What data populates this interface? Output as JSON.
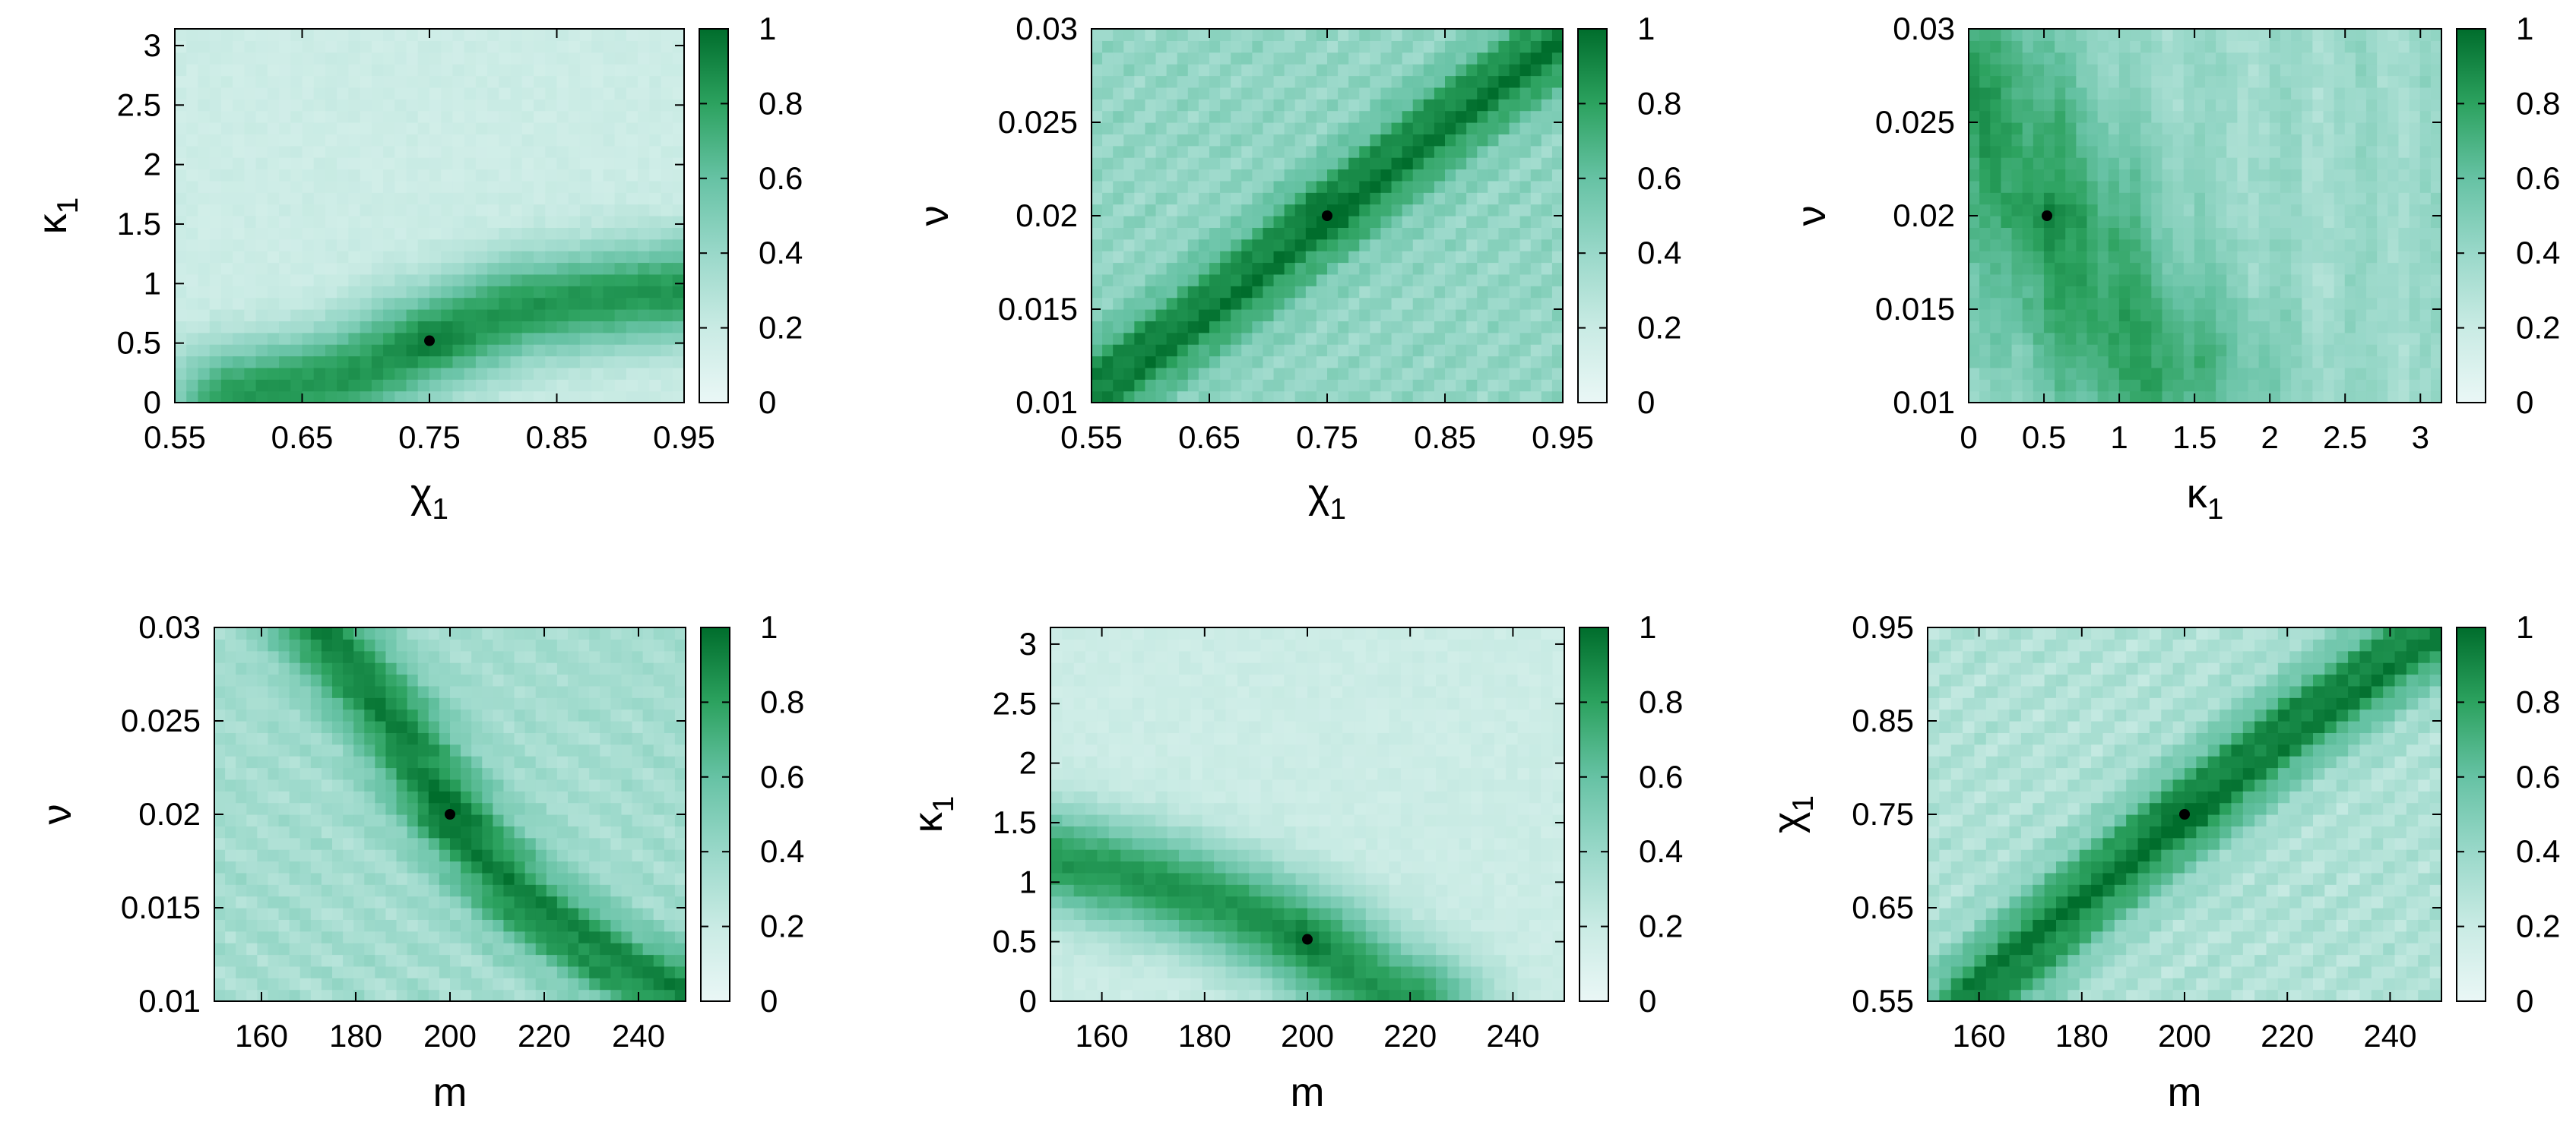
{
  "colorbar": {
    "ticks": [
      "0",
      "0.2",
      "0.4",
      "0.6",
      "0.8",
      "1"
    ],
    "range": [
      0,
      1
    ],
    "low_color": "#eaf7f6",
    "high_color": "#006837"
  },
  "chart_data": [
    {
      "type": "heatmap",
      "xlabel": "χ1",
      "ylabel": "κ1",
      "xlim": [
        0.55,
        0.95
      ],
      "ylim": [
        0,
        3.14
      ],
      "xticks": [
        "0.55",
        "0.65",
        "0.75",
        "0.85",
        "0.95"
      ],
      "yticks": [
        "0",
        "0.5",
        "1",
        "1.5",
        "2",
        "2.5",
        "3"
      ],
      "marker": {
        "x": 0.75,
        "y": 0.52
      },
      "ridge": [
        [
          0.6,
          0.05
        ],
        [
          0.68,
          0.2
        ],
        [
          0.75,
          0.52
        ],
        [
          0.82,
          0.8
        ],
        [
          0.95,
          0.95
        ]
      ],
      "ridge_width": 0.03,
      "base_level": 0.18,
      "peak_level": 0.85,
      "stripes": "none"
    },
    {
      "type": "heatmap",
      "xlabel": "χ1",
      "ylabel": "ν",
      "xlim": [
        0.55,
        0.95
      ],
      "ylim": [
        0.01,
        0.03
      ],
      "xticks": [
        "0.55",
        "0.65",
        "0.75",
        "0.85",
        "0.95"
      ],
      "yticks": [
        "0.01",
        "0.015",
        "0.02",
        "0.025",
        "0.03"
      ],
      "marker": {
        "x": 0.75,
        "y": 0.02
      },
      "ridge": [
        [
          0.55,
          0.0105
        ],
        [
          0.65,
          0.015
        ],
        [
          0.75,
          0.02
        ],
        [
          0.85,
          0.025
        ],
        [
          0.95,
          0.0295
        ]
      ],
      "ridge_width": 0.022,
      "base_level": 0.42,
      "peak_level": 0.95,
      "stripes": "diagonal"
    },
    {
      "type": "heatmap",
      "xlabel": "κ1",
      "ylabel": "ν",
      "xlim": [
        0,
        3.14
      ],
      "ylim": [
        0.01,
        0.03
      ],
      "xticks": [
        "0",
        "0.5",
        "1",
        "1.5",
        "2",
        "2.5",
        "3"
      ],
      "yticks": [
        "0.01",
        "0.015",
        "0.02",
        "0.025",
        "0.03"
      ],
      "marker": {
        "x": 0.52,
        "y": 0.02
      },
      "ridge": [
        [
          0,
          0.027
        ],
        [
          0.3,
          0.023
        ],
        [
          0.52,
          0.02
        ],
        [
          0.8,
          0.016
        ],
        [
          1.2,
          0.012
        ]
      ],
      "ridge_width": 0.05,
      "base_level": 0.38,
      "peak_level": 0.8,
      "stripes": "vertical-noise"
    },
    {
      "type": "heatmap",
      "xlabel": "m",
      "ylabel": "ν",
      "xlim": [
        150,
        250
      ],
      "ylim": [
        0.01,
        0.03
      ],
      "xticks": [
        "160",
        "180",
        "200",
        "220",
        "240"
      ],
      "yticks": [
        "0.01",
        "0.015",
        "0.02",
        "0.025",
        "0.03"
      ],
      "marker": {
        "x": 200,
        "y": 0.02
      },
      "ridge": [
        [
          172,
          0.03
        ],
        [
          188,
          0.025
        ],
        [
          200,
          0.02
        ],
        [
          215,
          0.0155
        ],
        [
          235,
          0.012
        ],
        [
          250,
          0.0105
        ]
      ],
      "ridge_width": 0.022,
      "base_level": 0.35,
      "peak_level": 0.92,
      "stripes": "arcs"
    },
    {
      "type": "heatmap",
      "xlabel": "m",
      "ylabel": "κ1",
      "xlim": [
        150,
        250
      ],
      "ylim": [
        0,
        3.14
      ],
      "xticks": [
        "160",
        "180",
        "200",
        "220",
        "240"
      ],
      "yticks": [
        "0",
        "0.5",
        "1",
        "1.5",
        "2",
        "2.5",
        "3"
      ],
      "marker": {
        "x": 200,
        "y": 0.52
      },
      "ridge": [
        [
          150,
          1.2
        ],
        [
          170,
          1.0
        ],
        [
          185,
          0.8
        ],
        [
          200,
          0.52
        ],
        [
          212,
          0.15
        ],
        [
          220,
          0.0
        ]
      ],
      "ridge_width": 0.03,
      "base_level": 0.18,
      "peak_level": 0.85,
      "stripes": "none"
    },
    {
      "type": "heatmap",
      "xlabel": "m",
      "ylabel": "χ1",
      "xlim": [
        150,
        250
      ],
      "ylim": [
        0.55,
        0.95
      ],
      "xticks": [
        "160",
        "180",
        "200",
        "220",
        "240"
      ],
      "yticks": [
        "0.55",
        "0.65",
        "0.75",
        "0.85",
        "0.95"
      ],
      "marker": {
        "x": 200,
        "y": 0.75
      },
      "ridge": [
        [
          160,
          0.56
        ],
        [
          180,
          0.66
        ],
        [
          200,
          0.75
        ],
        [
          220,
          0.84
        ],
        [
          248,
          0.945
        ]
      ],
      "ridge_width": 0.022,
      "base_level": 0.3,
      "peak_level": 0.95,
      "stripes": "diagonal"
    }
  ]
}
